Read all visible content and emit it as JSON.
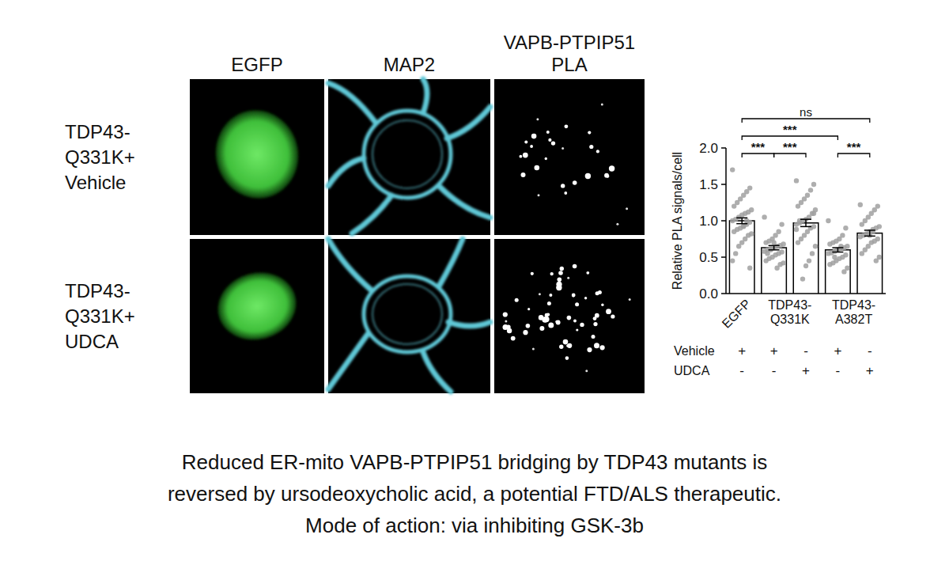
{
  "figure": {
    "column_headers": [
      [
        "EGFP"
      ],
      [
        "MAP2"
      ],
      [
        "VAPB-PTPIP51",
        "PLA"
      ]
    ],
    "row_labels": [
      [
        "TDP43-",
        "Q331K+",
        "Vehicle"
      ],
      [
        "TDP43-",
        "Q331K+",
        "UDCA"
      ]
    ],
    "caption": [
      "Reduced ER-mito VAPB-PTPIP51 bridging by TDP43 mutants is",
      "reversed by ursodeoxycholic acid, a potential FTD/ALS therapeutic.",
      "Mode of action: via inhibiting GSK-3b"
    ]
  },
  "chart_data": {
    "type": "bar",
    "y_label": "Relative PLA signals/cell",
    "categories": [
      "EGFP",
      "TDP43-Q331K",
      null,
      "TDP43-A382T",
      null
    ],
    "values": [
      1.0,
      0.63,
      0.97,
      0.6,
      0.83
    ],
    "errors": [
      0.04,
      0.03,
      0.05,
      0.03,
      0.04
    ],
    "points": [
      [
        1.7,
        1.45,
        1.4,
        1.35,
        1.3,
        1.25,
        1.2,
        1.15,
        1.12,
        1.1,
        1.08,
        1.05,
        1.02,
        1.0,
        0.98,
        0.95,
        0.93,
        0.9,
        0.88,
        0.85,
        0.82,
        0.8,
        0.75,
        0.7,
        0.65,
        0.55,
        0.45,
        0.35,
        1.0,
        0.92
      ],
      [
        1.05,
        0.95,
        0.85,
        0.8,
        0.75,
        0.72,
        0.7,
        0.68,
        0.66,
        0.65,
        0.63,
        0.62,
        0.6,
        0.58,
        0.57,
        0.55,
        0.53,
        0.5,
        0.48,
        0.45,
        0.42,
        0.4,
        0.35,
        0.7,
        0.6,
        0.55
      ],
      [
        1.55,
        1.5,
        1.42,
        1.35,
        1.3,
        1.25,
        1.2,
        1.15,
        1.1,
        1.05,
        1.02,
        1.0,
        0.97,
        0.95,
        0.92,
        0.9,
        0.85,
        0.8,
        0.75,
        0.7,
        0.65,
        0.55,
        0.45,
        0.38,
        0.2,
        1.0,
        0.88,
        1.1
      ],
      [
        1.0,
        0.9,
        0.8,
        0.75,
        0.72,
        0.7,
        0.68,
        0.65,
        0.63,
        0.62,
        0.6,
        0.58,
        0.56,
        0.55,
        0.53,
        0.5,
        0.48,
        0.45,
        0.42,
        0.4,
        0.35,
        0.3,
        0.65,
        0.6,
        0.5
      ],
      [
        1.22,
        1.2,
        1.15,
        1.1,
        1.05,
        1.0,
        0.95,
        0.92,
        0.9,
        0.88,
        0.85,
        0.82,
        0.8,
        0.78,
        0.75,
        0.72,
        0.7,
        0.65,
        0.6,
        0.55,
        0.5,
        0.45,
        0.85,
        0.8
      ]
    ],
    "color": "#ffffff",
    "ylim": [
      0,
      2
    ],
    "yticks": [
      {
        "value": 0,
        "label": "0.0"
      },
      {
        "value": 0.5,
        "label": "0.5"
      },
      {
        "value": 1,
        "label": "1.0"
      },
      {
        "value": 1.5,
        "label": "1.5"
      },
      {
        "value": 2,
        "label": "2.0"
      }
    ],
    "significance": [
      {
        "from": 0,
        "to": 4,
        "label": "ns"
      },
      {
        "from": 0,
        "to": 3,
        "label": "***"
      },
      {
        "from": 0,
        "to": 1,
        "label": "***"
      },
      {
        "from": 1,
        "to": 2,
        "label": "***"
      },
      {
        "from": 3,
        "to": 4,
        "label": "***"
      }
    ],
    "treatments": [
      {
        "label": "Vehicle",
        "marks": [
          "+",
          "+",
          "-",
          "+",
          "-"
        ]
      },
      {
        "label": "UDCA",
        "marks": [
          "-",
          "-",
          "+",
          "-",
          "+"
        ]
      }
    ]
  }
}
